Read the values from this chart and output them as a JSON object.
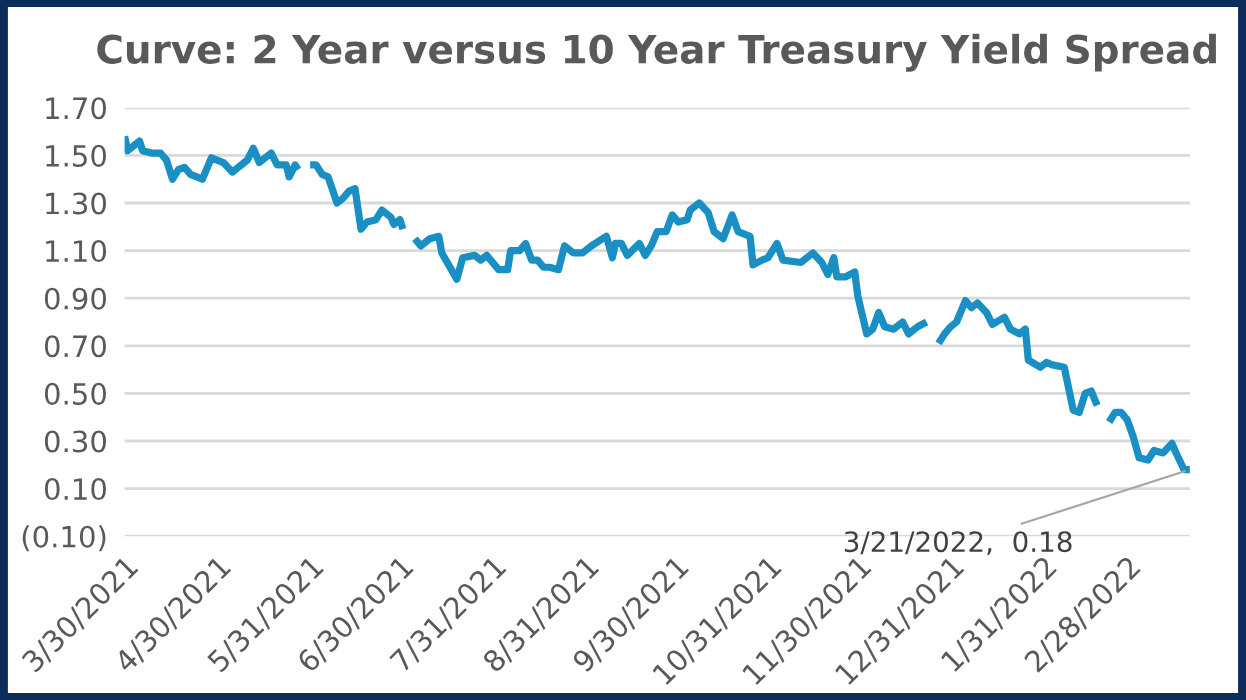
{
  "chart_data": {
    "type": "line",
    "title": "Curve: 2 Year versus 10 Year Treasury Yield Spread",
    "x": [
      "2021-03-30",
      "2021-03-31",
      "2021-04-04",
      "2021-04-05",
      "2021-04-08",
      "2021-04-11",
      "2021-04-13",
      "2021-04-15",
      "2021-04-17",
      "2021-04-19",
      "2021-04-21",
      "2021-04-25",
      "2021-04-28",
      "2021-05-02",
      "2021-05-05",
      "2021-05-08",
      "2021-05-10",
      "2021-05-12",
      "2021-05-14",
      "2021-05-18",
      "2021-05-20",
      "2021-05-23",
      "2021-05-24",
      "2021-05-26",
      "2021-05-27",
      "2021-05-29",
      "2021-05-31",
      "2021-06-02",
      "2021-06-04",
      "2021-06-06",
      "2021-06-09",
      "2021-06-11",
      "2021-06-13",
      "2021-06-15",
      "2021-06-17",
      "2021-06-19",
      "2021-06-22",
      "2021-06-24",
      "2021-06-27",
      "2021-06-28",
      "2021-06-30",
      "2021-07-01",
      "2021-07-03",
      "2021-07-05",
      "2021-07-07",
      "2021-07-10",
      "2021-07-13",
      "2021-07-14",
      "2021-07-19",
      "2021-07-21",
      "2021-07-25",
      "2021-07-27",
      "2021-07-29",
      "2021-08-02",
      "2021-08-05",
      "2021-08-06",
      "2021-08-09",
      "2021-08-11",
      "2021-08-13",
      "2021-08-15",
      "2021-08-17",
      "2021-08-19",
      "2021-08-22",
      "2021-08-24",
      "2021-08-27",
      "2021-08-30",
      "2021-09-02",
      "2021-09-07",
      "2021-09-09",
      "2021-09-10",
      "2021-09-12",
      "2021-09-14",
      "2021-09-18",
      "2021-09-20",
      "2021-09-22",
      "2021-09-24",
      "2021-09-27",
      "2021-09-29",
      "2021-10-01",
      "2021-10-04",
      "2021-10-05",
      "2021-10-08",
      "2021-10-11",
      "2021-10-13",
      "2021-10-16",
      "2021-10-19",
      "2021-10-21",
      "2021-10-25",
      "2021-10-26",
      "2021-10-29",
      "2021-10-31",
      "2021-11-03",
      "2021-11-05",
      "2021-11-11",
      "2021-11-15",
      "2021-11-18",
      "2021-11-20",
      "2021-11-22",
      "2021-11-23",
      "2021-11-26",
      "2021-11-29",
      "2021-11-30",
      "2021-12-03",
      "2021-12-05",
      "2021-12-07",
      "2021-12-09",
      "2021-12-12",
      "2021-12-15",
      "2021-12-17",
      "2021-12-20",
      "2021-12-23",
      "2021-12-25",
      "2021-12-27",
      "2021-12-29",
      "2021-12-31",
      "2022-01-02",
      "2022-01-05",
      "2022-01-07",
      "2022-01-09",
      "2022-01-12",
      "2022-01-14",
      "2022-01-18",
      "2022-01-20",
      "2022-01-23",
      "2022-01-25",
      "2022-01-26",
      "2022-01-30",
      "2022-02-01",
      "2022-02-03",
      "2022-02-07",
      "2022-02-10",
      "2022-02-12",
      "2022-02-14",
      "2022-02-16",
      "2022-02-18",
      "2022-02-20",
      "2022-02-22",
      "2022-02-24",
      "2022-02-26",
      "2022-02-28",
      "2022-03-02",
      "2022-03-04",
      "2022-03-07",
      "2022-03-09",
      "2022-03-12",
      "2022-03-15",
      "2022-03-16",
      "2022-03-19",
      "2022-03-21"
    ],
    "series": [
      {
        "color": "#1a8fc4",
        "values": [
          1.58,
          1.52,
          1.56,
          1.52,
          1.51,
          1.51,
          1.48,
          1.4,
          1.44,
          1.45,
          1.42,
          1.4,
          1.49,
          1.47,
          1.43,
          1.46,
          1.48,
          1.53,
          1.47,
          1.51,
          1.46,
          1.46,
          1.41,
          1.46,
          1.44,
          null,
          1.46,
          1.46,
          1.42,
          1.41,
          1.3,
          1.32,
          1.35,
          1.36,
          1.19,
          1.22,
          1.23,
          1.27,
          1.24,
          1.21,
          1.23,
          1.19,
          null,
          1.15,
          1.12,
          1.15,
          1.16,
          1.09,
          0.98,
          1.07,
          1.08,
          1.06,
          1.08,
          1.02,
          1.02,
          1.1,
          1.1,
          1.13,
          1.06,
          1.06,
          1.03,
          1.03,
          1.02,
          1.12,
          1.09,
          1.09,
          1.12,
          1.16,
          1.07,
          1.13,
          1.13,
          1.08,
          1.13,
          1.08,
          1.12,
          1.18,
          1.18,
          1.25,
          1.22,
          1.23,
          1.27,
          1.3,
          1.26,
          1.18,
          1.15,
          1.25,
          1.18,
          1.16,
          1.04,
          1.06,
          1.07,
          1.13,
          1.06,
          1.05,
          1.09,
          1.05,
          1.0,
          1.07,
          0.99,
          0.99,
          1.01,
          0.91,
          0.75,
          0.77,
          0.84,
          0.78,
          0.77,
          0.8,
          0.75,
          0.78,
          0.8,
          null,
          0.71,
          0.75,
          0.78,
          0.8,
          0.89,
          0.86,
          0.88,
          0.84,
          0.79,
          0.82,
          0.77,
          0.75,
          0.77,
          0.64,
          0.61,
          0.63,
          0.62,
          0.61,
          0.43,
          0.42,
          0.5,
          0.51,
          0.45,
          null,
          0.38,
          0.42,
          0.42,
          0.39,
          0.32,
          0.23,
          0.22,
          0.26,
          0.25,
          0.29,
          0.26,
          0.18,
          0.18
        ]
      }
    ],
    "xlim": [
      "2021-03-30",
      "2022-03-21"
    ],
    "xticks": [
      {
        "value": "2021-03-30",
        "label": "3/30/2021"
      },
      {
        "value": "2021-04-30",
        "label": "4/30/2021"
      },
      {
        "value": "2021-05-31",
        "label": "5/31/2021"
      },
      {
        "value": "2021-06-30",
        "label": "6/30/2021"
      },
      {
        "value": "2021-07-31",
        "label": "7/31/2021"
      },
      {
        "value": "2021-08-31",
        "label": "8/31/2021"
      },
      {
        "value": "2021-09-30",
        "label": "9/30/2021"
      },
      {
        "value": "2021-10-31",
        "label": "10/31/2021"
      },
      {
        "value": "2021-11-30",
        "label": "11/30/2021"
      },
      {
        "value": "2021-12-31",
        "label": "12/31/2021"
      },
      {
        "value": "2022-01-31",
        "label": "1/31/2022"
      },
      {
        "value": "2022-02-28",
        "label": "2/28/2022"
      }
    ],
    "ylim": [
      -0.1,
      1.7
    ],
    "yticks": [
      {
        "value": -0.1,
        "label": "(0.10)"
      },
      {
        "value": 0.1,
        "label": "0.10"
      },
      {
        "value": 0.3,
        "label": "0.30"
      },
      {
        "value": 0.5,
        "label": "0.50"
      },
      {
        "value": 0.7,
        "label": "0.70"
      },
      {
        "value": 0.9,
        "label": "0.90"
      },
      {
        "value": 1.1,
        "label": "1.10"
      },
      {
        "value": 1.3,
        "label": "1.30"
      },
      {
        "value": 1.5,
        "label": "1.50"
      },
      {
        "value": 1.7,
        "label": "1.70"
      }
    ],
    "grid": "y",
    "marker": "none",
    "line_style": "solid",
    "annotations": [
      {
        "text": "3/21/2022,  0.18",
        "x": "2022-03-21",
        "y": 0.18
      }
    ]
  }
}
